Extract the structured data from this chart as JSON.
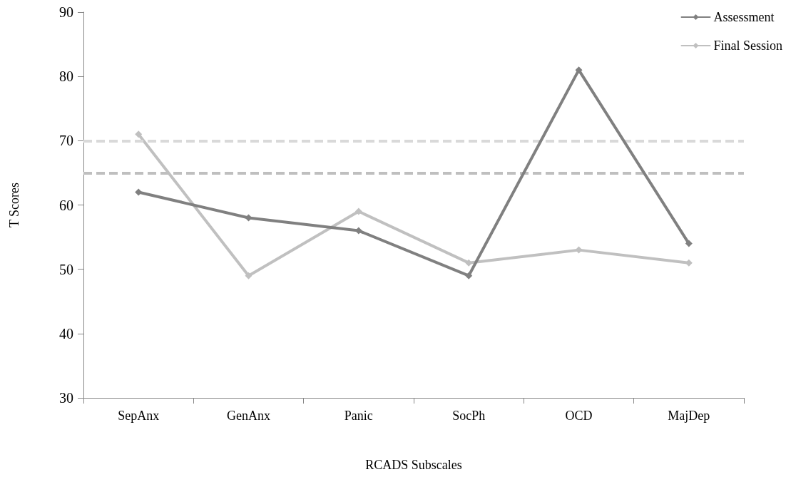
{
  "chart_data": {
    "type": "line",
    "xlabel": "RCADS Subscales",
    "ylabel": "T Scores",
    "categories": [
      "SepAnx",
      "GenAnx",
      "Panic",
      "SocPh",
      "OCD",
      "MajDep"
    ],
    "series": [
      {
        "name": "Assessment",
        "color": "#808080",
        "values": [
          62,
          58,
          56,
          49,
          81,
          54
        ]
      },
      {
        "name": "Final Session",
        "color": "#c0c0c0",
        "values": [
          71,
          49,
          59,
          51,
          53,
          51
        ]
      }
    ],
    "ylim": [
      30,
      90
    ],
    "yticks": [
      30,
      40,
      50,
      60,
      70,
      80,
      90
    ],
    "ref_lines": [
      {
        "axis": "y",
        "value": 70,
        "color": "#d9d9d9",
        "line_style": "dashed"
      },
      {
        "axis": "y",
        "value": 65,
        "color": "#bfbfbf",
        "line_style": "dashed"
      }
    ],
    "grid": false,
    "legend": "top right",
    "marker": "diamond",
    "line_style": "solid"
  }
}
